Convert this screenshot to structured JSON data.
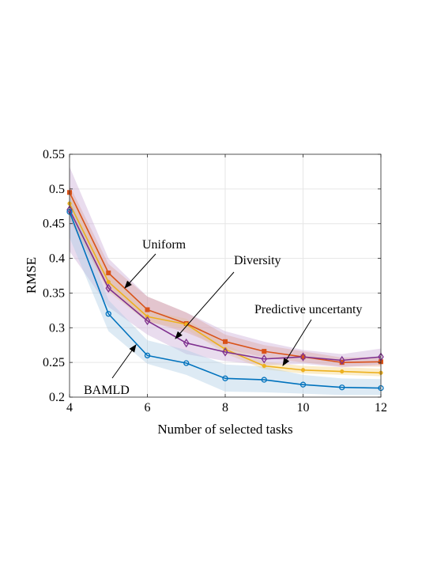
{
  "chart_data": {
    "type": "line",
    "xlabel": "Number of selected tasks",
    "ylabel": "RMSE",
    "xlim": [
      4,
      12
    ],
    "ylim": [
      0.2,
      0.55
    ],
    "xticks": [
      4,
      6,
      8,
      10,
      12
    ],
    "yticks": [
      0.2,
      0.25,
      0.3,
      0.35,
      0.4,
      0.45,
      0.5,
      0.55
    ],
    "xtick_labels": [
      "4",
      "6",
      "8",
      "10",
      "12"
    ],
    "ytick_labels": [
      "0.2",
      "0.25",
      "0.3",
      "0.35",
      "0.4",
      "0.45",
      "0.5",
      "0.55"
    ],
    "grid": true,
    "x": [
      4,
      5,
      6,
      7,
      8,
      9,
      10,
      11,
      12
    ],
    "series": [
      {
        "name": "Uniform",
        "color": "#D95319",
        "band_color": "#E8A07A",
        "marker": "square",
        "values": [
          0.495,
          0.379,
          0.326,
          0.306,
          0.28,
          0.266,
          0.258,
          0.25,
          0.251
        ],
        "band_lower": [
          0.455,
          0.355,
          0.31,
          0.293,
          0.27,
          0.257,
          0.25,
          0.244,
          0.244
        ],
        "band_upper": [
          0.505,
          0.392,
          0.345,
          0.322,
          0.29,
          0.275,
          0.266,
          0.257,
          0.258
        ]
      },
      {
        "name": "Predictive uncertanty",
        "color": "#EDB120",
        "band_color": "#F5D37A",
        "marker": "dot",
        "values": [
          0.479,
          0.366,
          0.316,
          0.305,
          0.269,
          0.245,
          0.239,
          0.237,
          0.235
        ],
        "band_lower": [
          0.46,
          0.352,
          0.308,
          0.298,
          0.263,
          0.24,
          0.234,
          0.232,
          0.23
        ],
        "band_upper": [
          0.495,
          0.378,
          0.325,
          0.313,
          0.276,
          0.251,
          0.245,
          0.243,
          0.241
        ]
      },
      {
        "name": "Diversity",
        "color": "#7E2F8E",
        "band_color": "#C9A8D4",
        "marker": "diamond",
        "values": [
          0.47,
          0.357,
          0.31,
          0.278,
          0.265,
          0.255,
          0.258,
          0.253,
          0.258
        ],
        "band_lower": [
          0.41,
          0.33,
          0.29,
          0.262,
          0.252,
          0.246,
          0.248,
          0.243,
          0.247
        ],
        "band_upper": [
          0.532,
          0.4,
          0.345,
          0.322,
          0.295,
          0.28,
          0.268,
          0.262,
          0.27
        ]
      },
      {
        "name": "BAMLD",
        "color": "#0072BD",
        "band_color": "#A9CBE3",
        "marker": "circle",
        "values": [
          0.467,
          0.32,
          0.26,
          0.249,
          0.227,
          0.225,
          0.218,
          0.214,
          0.213
        ],
        "band_lower": [
          0.43,
          0.295,
          0.248,
          0.232,
          0.208,
          0.207,
          0.205,
          0.203,
          0.203
        ],
        "band_upper": [
          0.49,
          0.34,
          0.282,
          0.268,
          0.247,
          0.244,
          0.232,
          0.227,
          0.226
        ]
      }
    ],
    "annotations": [
      {
        "text": "Uniform",
        "series": "Uniform",
        "arrow_to_x": 5.4
      },
      {
        "text": "Diversity",
        "series": "Diversity",
        "arrow_to_x": 6.8
      },
      {
        "text": "Predictive uncertanty",
        "series": "Predictive uncertanty",
        "arrow_to_x": 9.5
      },
      {
        "text": "BAMLD",
        "series": "BAMLD",
        "arrow_to_x": 5.7
      }
    ]
  }
}
